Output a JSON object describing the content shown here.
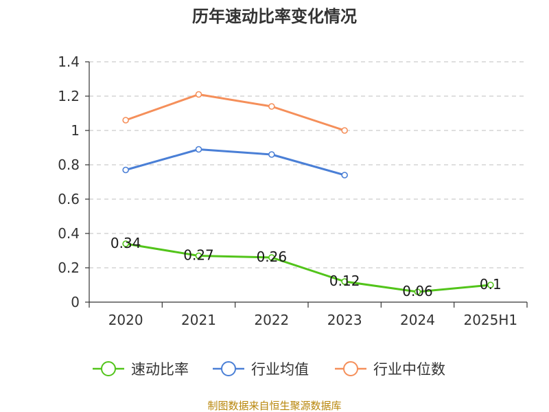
{
  "chart_data": {
    "type": "line",
    "title": "历年速动比率变化情况",
    "categories": [
      "2020",
      "2021",
      "2022",
      "2023",
      "2024",
      "2025H1"
    ],
    "ylim": [
      0,
      1.4
    ],
    "yticks": [
      "0",
      "0.2",
      "0.4",
      "0.6",
      "0.8",
      "1",
      "1.2",
      "1.4"
    ],
    "grid": true,
    "legend_position": "bottom",
    "series": [
      {
        "name": "速动比率",
        "color": "#52c41a",
        "values": [
          0.34,
          0.27,
          0.26,
          0.12,
          0.06,
          0.1
        ],
        "labels": [
          "0.34",
          "0.27",
          "0.26",
          "0.12",
          "0.06",
          "0.1"
        ]
      },
      {
        "name": "行业均值",
        "color": "#4a7fd6",
        "values": [
          0.77,
          0.89,
          0.86,
          0.74,
          null,
          null
        ]
      },
      {
        "name": "行业中位数",
        "color": "#f58f5a",
        "values": [
          1.06,
          1.21,
          1.14,
          1.0,
          null,
          null
        ]
      }
    ]
  },
  "source": "制图数据来自恒生聚源数据库"
}
